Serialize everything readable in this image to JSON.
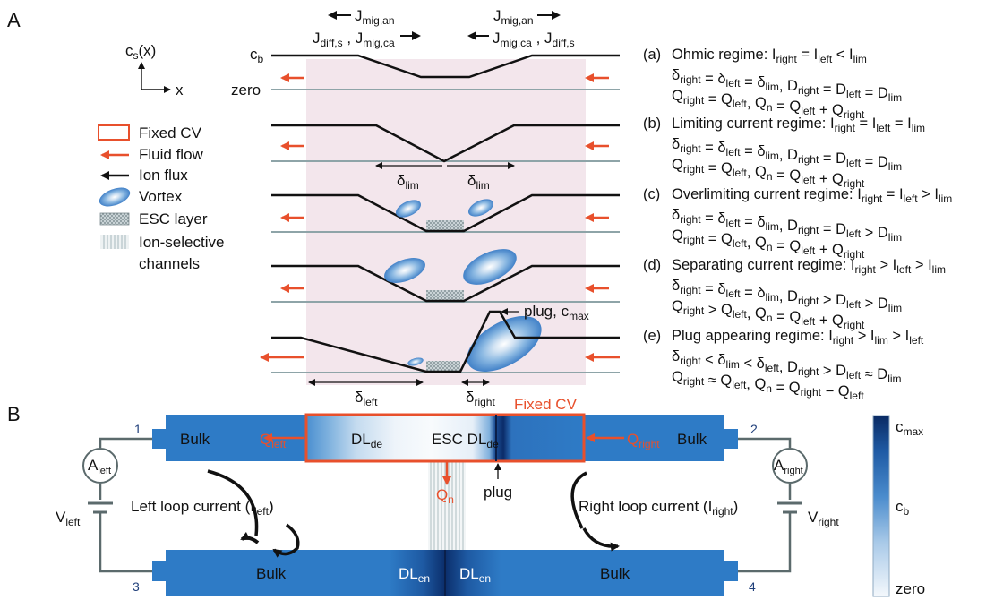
{
  "panel_a": {
    "label": "A",
    "axis": {
      "y": "c",
      "y_sub": "s",
      "y_suffix": "(x)",
      "x": "x"
    },
    "level_labels": {
      "cb": "c",
      "cb_sub": "b",
      "zero": "zero"
    },
    "flux_left": {
      "l1": "J",
      "l1_sub": "diff,s",
      "comma": " , ",
      "l2": "J",
      "l2_sub": "mig,ca"
    },
    "flux_left_top": {
      "t": "J",
      "t_sub": "mig,an"
    },
    "flux_right_top": {
      "t": "J",
      "t_sub": "mig,an"
    },
    "flux_right": {
      "l1": "J",
      "l1_sub": "mig,ca",
      "comma": " , ",
      "l2": "J",
      "l2_sub": "diff,s"
    },
    "legend": {
      "fixed_cv": "Fixed CV",
      "fluid_flow": "Fluid flow",
      "ion_flux": "Ion flux",
      "vortex": "Vortex",
      "esc_layer": "ESC layer",
      "ion_sel_1": "Ion-selective",
      "ion_sel_2": "channels"
    },
    "delta_lim_left": {
      "t": "δ",
      "sub": "lim"
    },
    "delta_lim_right": {
      "t": "δ",
      "sub": "lim"
    },
    "delta_left": {
      "t": "δ",
      "sub": "left"
    },
    "delta_right": {
      "t": "δ",
      "sub": "right"
    },
    "plug": {
      "t": "plug, c",
      "sub": "max"
    },
    "fixed_cv_label": "Fixed CV",
    "colors": {
      "region": "#f3e6ec",
      "flow": "#e8502c",
      "profile": "#111111",
      "zero_line": "#8ea4a8"
    }
  },
  "regimes": [
    {
      "letter": "(a)",
      "title": "Ohmic regime: I",
      "r1": "right",
      "m1": " = I",
      "r2": "left",
      "m2": " < I",
      "r3": "lim",
      "line2": "δright = δleft = δlim, Dright = Dleft = Dlim",
      "line3": "Qright = Qleft, Qn = Qleft + Qright"
    },
    {
      "letter": "(b)",
      "title": "Limiting current regime: I",
      "r1": "right",
      "m1": " = I",
      "r2": "left",
      "m2": " = I",
      "r3": "lim",
      "line2": "δright = δleft = δlim, Dright = Dleft = Dlim",
      "line3": "Qright = Qleft, Qn = Qleft + Qright"
    },
    {
      "letter": "(c)",
      "title": "Overlimiting current regime: I",
      "r1": "right",
      "m1": " = I",
      "r2": "left",
      "m2": " > I",
      "r3": "lim",
      "line2": "δright = δleft = δlim, Dright = Dleft > Dlim",
      "line3": "Qright = Qleft, Qn = Qleft + Qright"
    },
    {
      "letter": "(d)",
      "title": "Separating current regime: I",
      "r1": "right",
      "m1": " > I",
      "r2": "left",
      "m2": " > I",
      "r3": "lim",
      "line2": "δright = δleft = δlim, Dright > Dleft > Dlim",
      "line3": "Qright > Qleft, Qn = Qleft + Qright"
    },
    {
      "letter": "(e)",
      "title": "Plug appearing regime: I",
      "r1": "right",
      "m1": " > I",
      "r2": "lim",
      "m2": " > I",
      "r3": "left",
      "line2": "δright < δlim < δleft, Dright > Dleft ≈ Dlim",
      "line3": "Qright ≈ Qleft, Qn = Qright − Qleft"
    }
  ],
  "panel_b": {
    "label": "B",
    "bulk_top_left": "Bulk",
    "bulk_top_right": "Bulk",
    "bulk_bottom_left": "Bulk",
    "bulk_bottom_right": "Bulk",
    "q_left": {
      "t": "Q",
      "sub": "left"
    },
    "q_right": {
      "t": "Q",
      "sub": "right"
    },
    "q_n": {
      "t": "Q",
      "sub": "n"
    },
    "dl_de_1": {
      "t": "DL",
      "sub": "de"
    },
    "esc_dl_de": {
      "t": "ESC DL",
      "sub": "de"
    },
    "dl_en_1": {
      "t": "DL",
      "sub": "en"
    },
    "dl_en_2": {
      "t": "DL",
      "sub": "en"
    },
    "plug": "plug",
    "ammeter_left": {
      "t": "A",
      "sub": "left"
    },
    "ammeter_right": {
      "t": "A",
      "sub": "right"
    },
    "v_left": {
      "t": "V",
      "sub": "left"
    },
    "v_right": {
      "t": "V",
      "sub": "right"
    },
    "left_loop": "Left loop current (I",
    "left_loop_sub": "left",
    "right_loop": "Right loop current (I",
    "right_loop_sub": "right",
    "close_paren": ")",
    "nodes": [
      "1",
      "2",
      "3",
      "4"
    ],
    "colorbar": {
      "max": "c",
      "max_sub": "max",
      "mid": "c",
      "mid_sub": "b",
      "min": "zero"
    },
    "colors": {
      "bulk": "#2e7bc6",
      "wire": "#5b6a6c",
      "dark": "#0b2e6b",
      "cv_border": "#e8502c"
    }
  }
}
